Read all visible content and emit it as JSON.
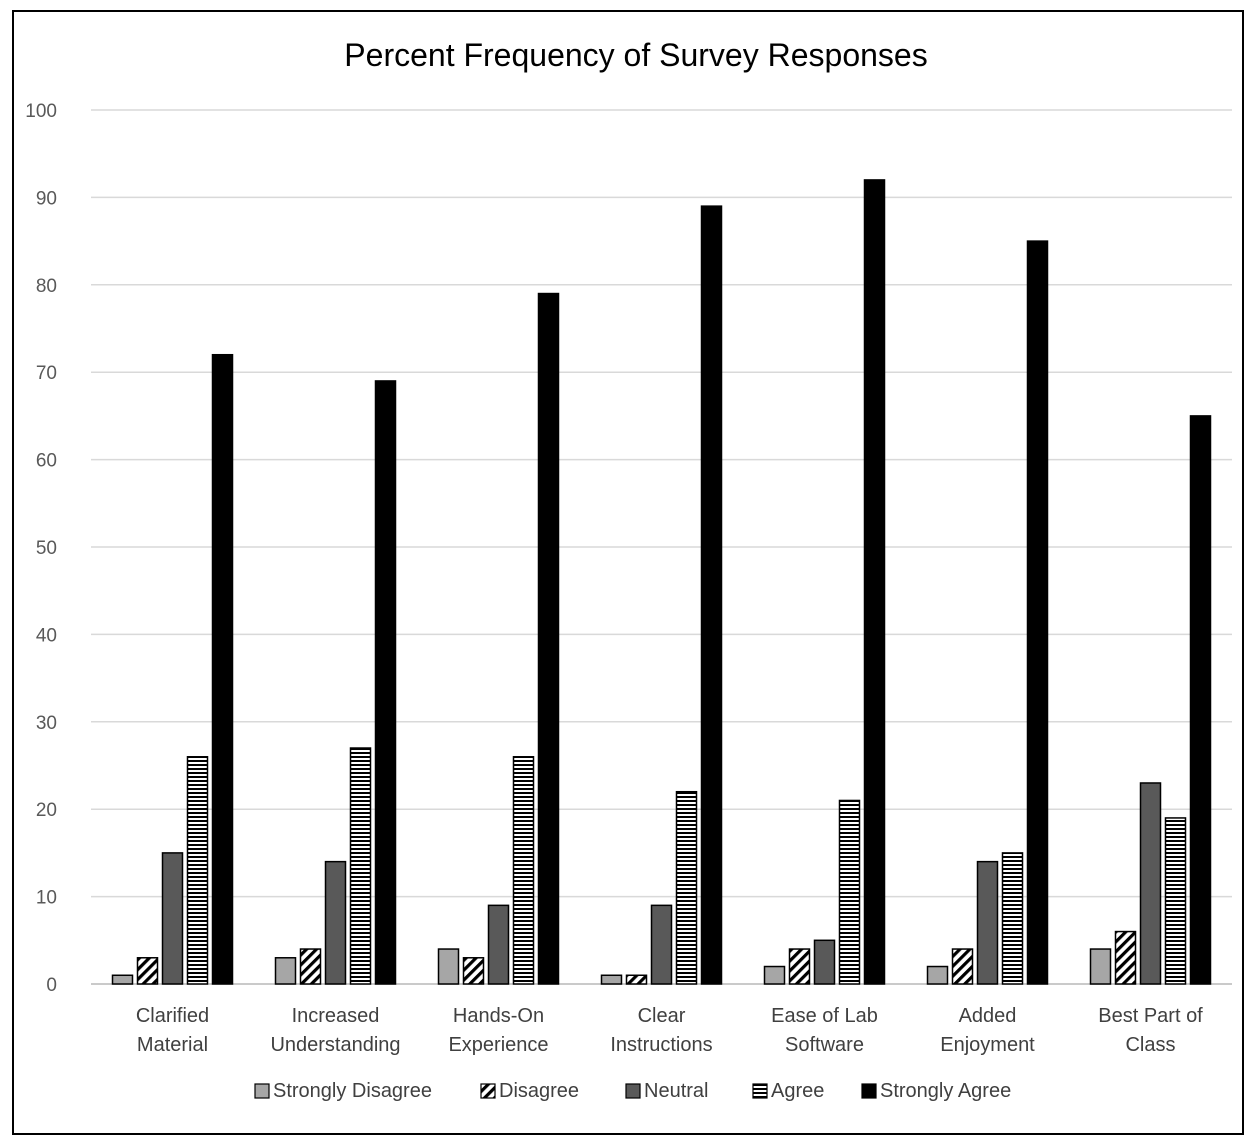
{
  "chart_data": {
    "type": "bar",
    "title": "Percent Frequency of Survey Responses",
    "xlabel": "",
    "ylabel": "",
    "ylim": [
      0,
      100
    ],
    "yticks": [
      "0",
      "10",
      "20",
      "30",
      "40",
      "50",
      "60",
      "70",
      "80",
      "90",
      "100"
    ],
    "grid": true,
    "legend_position": "bottom",
    "categories": [
      [
        "Clarified",
        "Material"
      ],
      [
        "Increased",
        "Understanding"
      ],
      [
        "Hands-On",
        "Experience"
      ],
      [
        "Clear",
        "Instructions"
      ],
      [
        "Ease of Lab",
        "Software"
      ],
      [
        "Added",
        "Enjoyment"
      ],
      [
        "Best Part of",
        "Class"
      ]
    ],
    "series": [
      {
        "name": "Strongly Disagree",
        "values": [
          1,
          3,
          4,
          1,
          2,
          2,
          4
        ],
        "color": "#a6a6a6",
        "pattern": "solid"
      },
      {
        "name": "Disagree",
        "values": [
          3,
          4,
          3,
          1,
          4,
          4,
          6
        ],
        "color": "#000000",
        "pattern": "diagonal"
      },
      {
        "name": "Neutral",
        "values": [
          15,
          14,
          9,
          9,
          5,
          14,
          23
        ],
        "color": "#595959",
        "pattern": "solid"
      },
      {
        "name": "Agree",
        "values": [
          26,
          27,
          26,
          22,
          21,
          15,
          19
        ],
        "color": "#000000",
        "pattern": "horizontal"
      },
      {
        "name": "Strongly Agree",
        "values": [
          72,
          69,
          79,
          89,
          92,
          85,
          65
        ],
        "color": "#000000",
        "pattern": "solid"
      }
    ]
  }
}
